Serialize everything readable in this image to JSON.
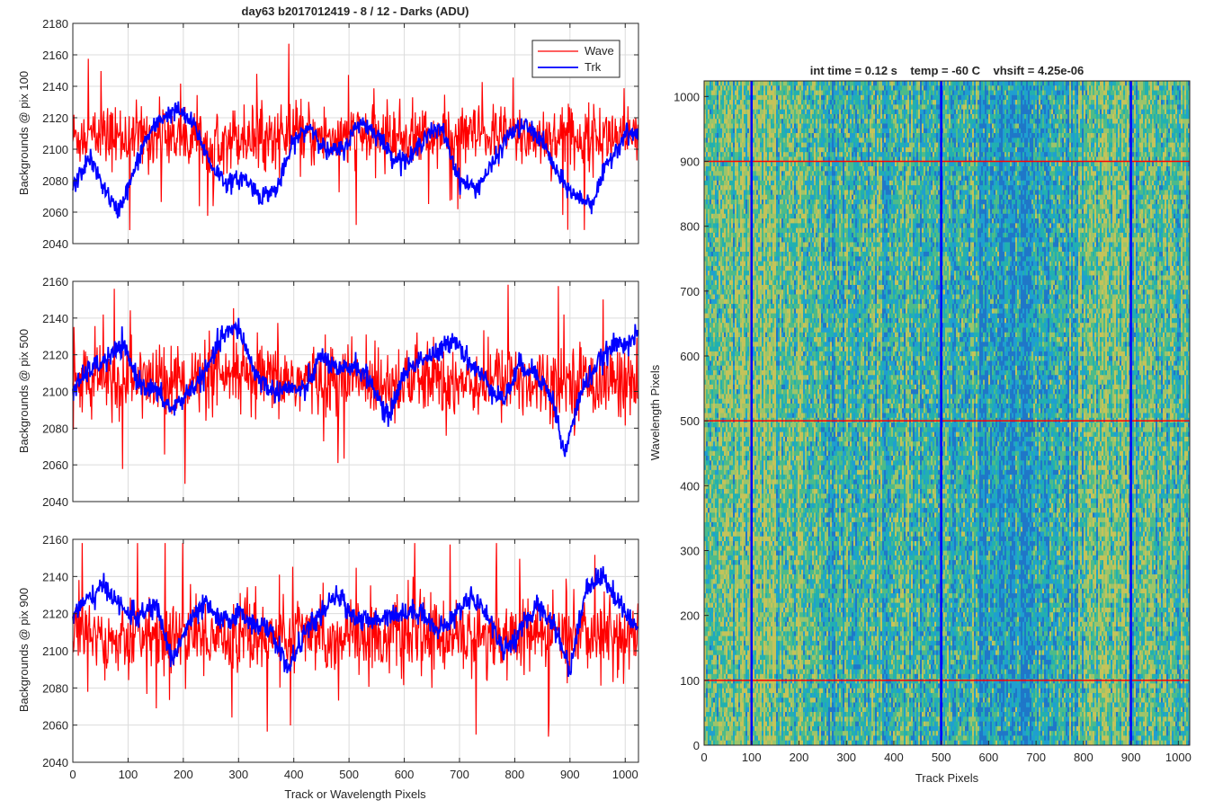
{
  "figure": {
    "title": "day63 b2017012419 - 8 / 12 - Darks (ADU)",
    "colors": {
      "wave": "#ff0000",
      "trk": "#0000ff",
      "grid": "#dcdcdc",
      "axis": "#262626"
    }
  },
  "chart_data": [
    {
      "type": "line",
      "title": "day63 b2017012419 - 8 / 12 - Darks (ADU)",
      "xlabel": "",
      "ylabel": "Backgrounds @ pix 100",
      "xlim": [
        0,
        1024
      ],
      "ylim": [
        2040,
        2180
      ],
      "xticks": [
        0,
        100,
        200,
        300,
        400,
        500,
        600,
        700,
        800,
        900,
        1000
      ],
      "yticks": [
        2040,
        2060,
        2080,
        2100,
        2120,
        2140,
        2160,
        2180
      ],
      "grid": true,
      "legend": {
        "placement": "top-right",
        "entries": [
          "Wave",
          "Trk"
        ]
      },
      "series": [
        {
          "name": "Wave",
          "color": "#ff0000",
          "kind": "noisy",
          "mean": 2108,
          "noise": 10,
          "min": 2045,
          "max": 2172,
          "samples": 1024
        },
        {
          "name": "Trk",
          "color": "#0000ff",
          "kind": "smooth",
          "samples": 1024,
          "x": [
            0,
            30,
            50,
            80,
            100,
            130,
            160,
            190,
            220,
            250,
            280,
            310,
            340,
            370,
            400,
            430,
            460,
            490,
            520,
            550,
            580,
            610,
            640,
            670,
            700,
            730,
            760,
            790,
            820,
            850,
            880,
            910,
            940,
            970,
            1000,
            1024
          ],
          "y": [
            2075,
            2095,
            2080,
            2060,
            2075,
            2105,
            2120,
            2125,
            2115,
            2090,
            2078,
            2082,
            2070,
            2075,
            2105,
            2115,
            2098,
            2100,
            2118,
            2110,
            2095,
            2093,
            2110,
            2112,
            2080,
            2075,
            2090,
            2110,
            2115,
            2105,
            2082,
            2070,
            2066,
            2092,
            2110,
            2110
          ]
        }
      ]
    },
    {
      "type": "line",
      "xlabel": "",
      "ylabel": "Backgrounds @ pix 500",
      "xlim": [
        0,
        1024
      ],
      "ylim": [
        2040,
        2160
      ],
      "xticks": [
        0,
        100,
        200,
        300,
        400,
        500,
        600,
        700,
        800,
        900,
        1000
      ],
      "yticks": [
        2040,
        2060,
        2080,
        2100,
        2120,
        2140,
        2160
      ],
      "grid": true,
      "series": [
        {
          "name": "Wave",
          "color": "#ff0000",
          "kind": "noisy",
          "mean": 2106,
          "noise": 10,
          "min": 2048,
          "max": 2160,
          "samples": 1024
        },
        {
          "name": "Trk",
          "color": "#0000ff",
          "kind": "smooth",
          "samples": 1024,
          "x": [
            0,
            30,
            60,
            90,
            120,
            150,
            180,
            210,
            240,
            270,
            300,
            330,
            360,
            390,
            420,
            450,
            480,
            510,
            540,
            570,
            600,
            630,
            660,
            690,
            720,
            750,
            780,
            810,
            840,
            870,
            890,
            920,
            950,
            980,
            1024
          ],
          "y": [
            2100,
            2112,
            2117,
            2125,
            2105,
            2100,
            2090,
            2100,
            2110,
            2130,
            2135,
            2110,
            2100,
            2102,
            2100,
            2120,
            2110,
            2115,
            2105,
            2085,
            2110,
            2118,
            2120,
            2130,
            2115,
            2105,
            2095,
            2115,
            2110,
            2095,
            2065,
            2100,
            2115,
            2125,
            2130
          ]
        }
      ]
    },
    {
      "type": "line",
      "xlabel": "Track or Wavelength Pixels",
      "ylabel": "Backgrounds @ pix 900",
      "xlim": [
        0,
        1024
      ],
      "ylim": [
        2040,
        2160
      ],
      "xticks": [
        0,
        100,
        200,
        300,
        400,
        500,
        600,
        700,
        800,
        900,
        1000
      ],
      "yticks": [
        2040,
        2060,
        2080,
        2100,
        2120,
        2140,
        2160
      ],
      "grid": true,
      "series": [
        {
          "name": "Wave",
          "color": "#ff0000",
          "kind": "noisy",
          "mean": 2108,
          "noise": 10,
          "min": 2052,
          "max": 2158,
          "samples": 1024
        },
        {
          "name": "Trk",
          "color": "#0000ff",
          "kind": "smooth",
          "samples": 1024,
          "x": [
            0,
            30,
            60,
            90,
            120,
            150,
            180,
            210,
            240,
            270,
            300,
            330,
            360,
            390,
            420,
            450,
            480,
            510,
            540,
            570,
            600,
            630,
            660,
            690,
            720,
            750,
            780,
            810,
            840,
            870,
            900,
            930,
            960,
            990,
            1024
          ],
          "y": [
            2120,
            2128,
            2135,
            2122,
            2118,
            2125,
            2095,
            2115,
            2125,
            2115,
            2120,
            2115,
            2110,
            2090,
            2110,
            2120,
            2130,
            2118,
            2115,
            2120,
            2120,
            2122,
            2110,
            2118,
            2130,
            2120,
            2100,
            2110,
            2125,
            2115,
            2090,
            2135,
            2140,
            2125,
            2110
          ]
        }
      ]
    },
    {
      "type": "heatmap",
      "title": "int time = 0.12 s    temp = -60 C    vhsift = 4.25e-06",
      "xlabel": "Track Pixels",
      "ylabel": "Wavelength Pixels",
      "xlim": [
        0,
        1024
      ],
      "ylim": [
        0,
        1024
      ],
      "xticks": [
        0,
        100,
        200,
        300,
        400,
        500,
        600,
        700,
        800,
        900,
        1000
      ],
      "yticks": [
        0,
        100,
        200,
        300,
        400,
        500,
        600,
        700,
        800,
        900,
        1000
      ],
      "colormap": [
        "#1f77c8",
        "#1f9fd0",
        "#22b0b0",
        "#4cbb8a",
        "#9cc46a",
        "#c4c35a"
      ],
      "overlays": {
        "vertical_lines": {
          "color": "#0000ff",
          "x": [
            100,
            500,
            900
          ]
        },
        "horizontal_lines": {
          "color": "#ff0000",
          "y": [
            100,
            500,
            900
          ]
        }
      }
    }
  ]
}
